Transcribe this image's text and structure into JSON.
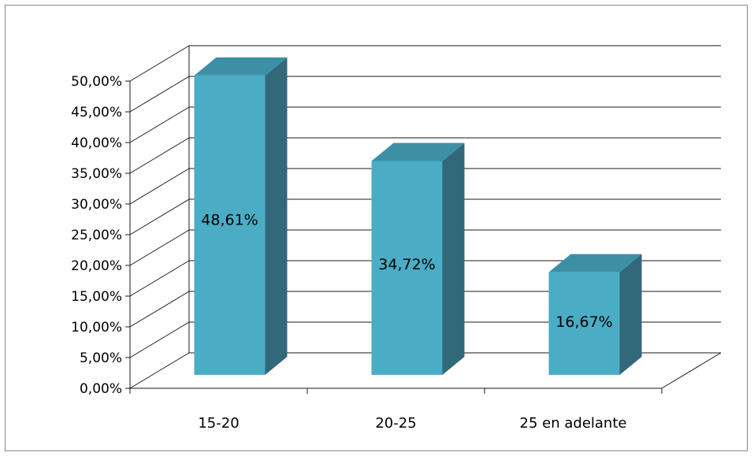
{
  "chart_data": {
    "type": "bar",
    "title": "",
    "xlabel": "",
    "ylabel": "",
    "categories": [
      "15-20",
      "20-25",
      "25 en adelante"
    ],
    "values": [
      48.61,
      34.72,
      16.67
    ],
    "data_labels": [
      "48,61%",
      "34,72%",
      "16,67%"
    ],
    "ylim": [
      0,
      50
    ],
    "ytick_labels": [
      "0,00%",
      "5,00%",
      "10,00%",
      "15,00%",
      "20,00%",
      "25,00%",
      "30,00%",
      "35,00%",
      "40,00%",
      "45,00%",
      "50,00%"
    ],
    "grid": true,
    "legend": "none",
    "three_d": true,
    "colors": {
      "bar_front": "#4BACC6",
      "bar_top": "#3D8FA6",
      "bar_side": "#31687A",
      "grid": "#1a1a1a"
    }
  }
}
